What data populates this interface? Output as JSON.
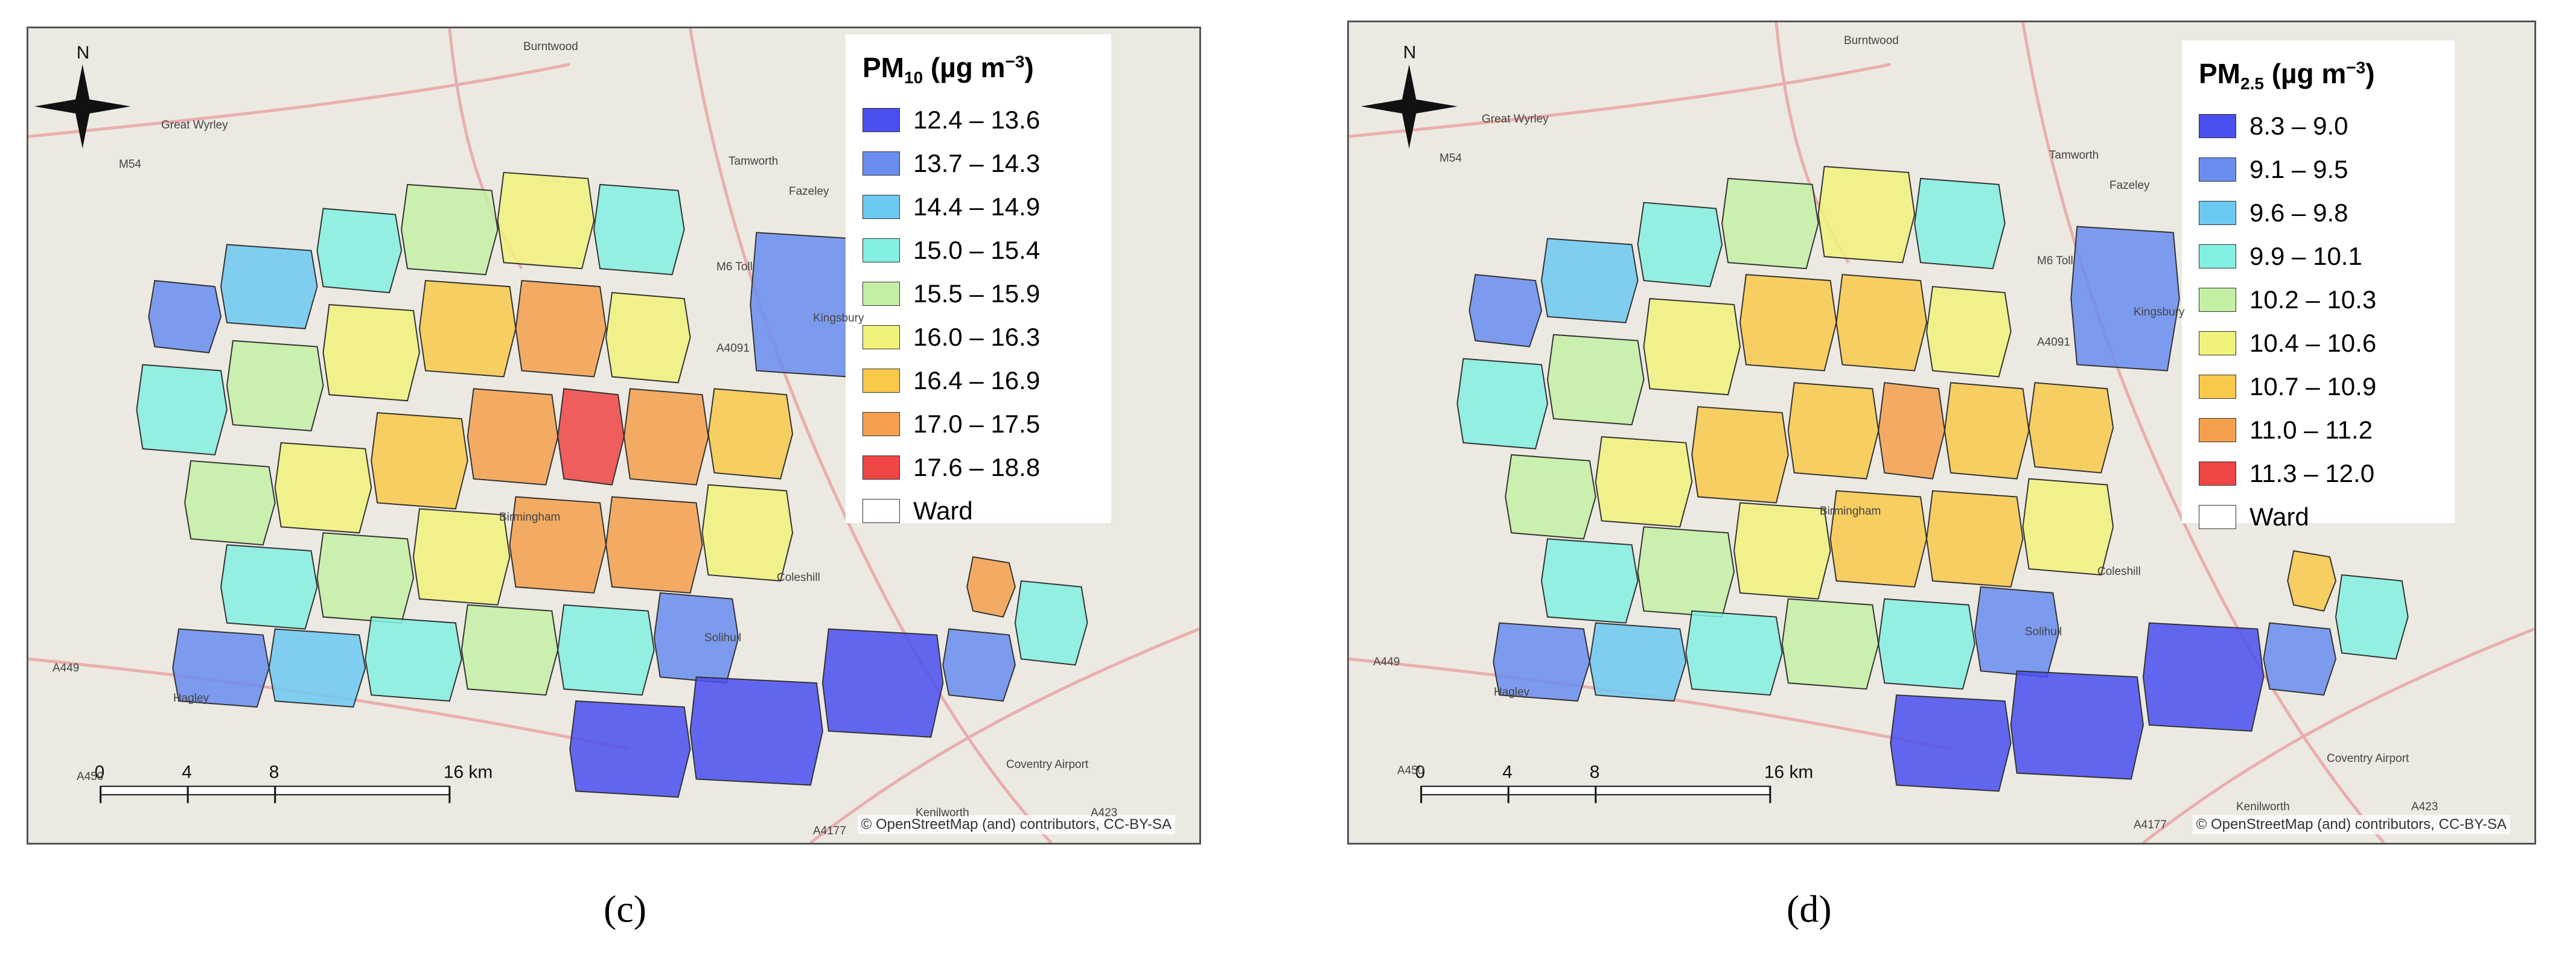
{
  "panels": [
    {
      "id": "c",
      "caption": "(c)",
      "legend": {
        "title_main": "PM",
        "title_sub": "10",
        "title_unit_pre": " (µg m",
        "title_unit_sup": "−3",
        "title_unit_post": ")",
        "classes": [
          {
            "label": "12.4 – 13.6",
            "color": "#4a4ff0"
          },
          {
            "label": "13.7 – 14.3",
            "color": "#6a8df0"
          },
          {
            "label": "14.4 – 14.9",
            "color": "#6cc9f2"
          },
          {
            "label": "15.0 – 15.4",
            "color": "#83f0e2"
          },
          {
            "label": "15.5 – 15.9",
            "color": "#c4f0a6"
          },
          {
            "label": "16.0 – 16.3",
            "color": "#f1f27a"
          },
          {
            "label": "16.4 – 16.9",
            "color": "#f9c94a"
          },
          {
            "label": "17.0 – 17.5",
            "color": "#f4a04c"
          },
          {
            "label": "17.6 – 18.8",
            "color": "#f04545"
          }
        ],
        "ward_label": "Ward"
      },
      "scale_labels": [
        "0",
        "4",
        "8",
        "16 km"
      ],
      "credit": "© OpenStreetMap (and) contributors, CC-BY-SA",
      "north": "N",
      "places": [
        "Burntwood",
        "Great Wyrley",
        "Tamworth",
        "Fazeley",
        "Kingsbury",
        "Coleshill",
        "Birmingham",
        "Solihull",
        "Hagley",
        "Kenilworth",
        "Coventry Airport",
        "M54",
        "M6 Toll",
        "A4091",
        "A449",
        "A450",
        "A4177",
        "A423"
      ]
    },
    {
      "id": "d",
      "caption": "(d)",
      "legend": {
        "title_main": "PM",
        "title_sub": "2.5",
        "title_unit_pre": " (µg m",
        "title_unit_sup": "−3",
        "title_unit_post": ")",
        "classes": [
          {
            "label": "8.3 – 9.0",
            "color": "#4a4ff0"
          },
          {
            "label": "9.1 – 9.5",
            "color": "#6a8df0"
          },
          {
            "label": "9.6 – 9.8",
            "color": "#6cc9f2"
          },
          {
            "label": "9.9 – 10.1",
            "color": "#83f0e2"
          },
          {
            "label": "10.2 – 10.3",
            "color": "#c4f0a6"
          },
          {
            "label": "10.4 – 10.6",
            "color": "#f1f27a"
          },
          {
            "label": "10.7 – 10.9",
            "color": "#f9c94a"
          },
          {
            "label": "11.0 – 11.2",
            "color": "#f4a04c"
          },
          {
            "label": "11.3 – 12.0",
            "color": "#f04545"
          }
        ],
        "ward_label": "Ward"
      },
      "scale_labels": [
        "0",
        "4",
        "8",
        "16 km"
      ],
      "credit": "© OpenStreetMap (and) contributors, CC-BY-SA",
      "north": "N",
      "places": [
        "Burntwood",
        "Great Wyrley",
        "Tamworth",
        "Fazeley",
        "Kingsbury",
        "Coleshill",
        "Birmingham",
        "Solihull",
        "Hagley",
        "Kenilworth",
        "Coventry Airport",
        "M54",
        "M6 Toll",
        "A4091",
        "A449",
        "A450",
        "A4177",
        "A423"
      ]
    }
  ]
}
